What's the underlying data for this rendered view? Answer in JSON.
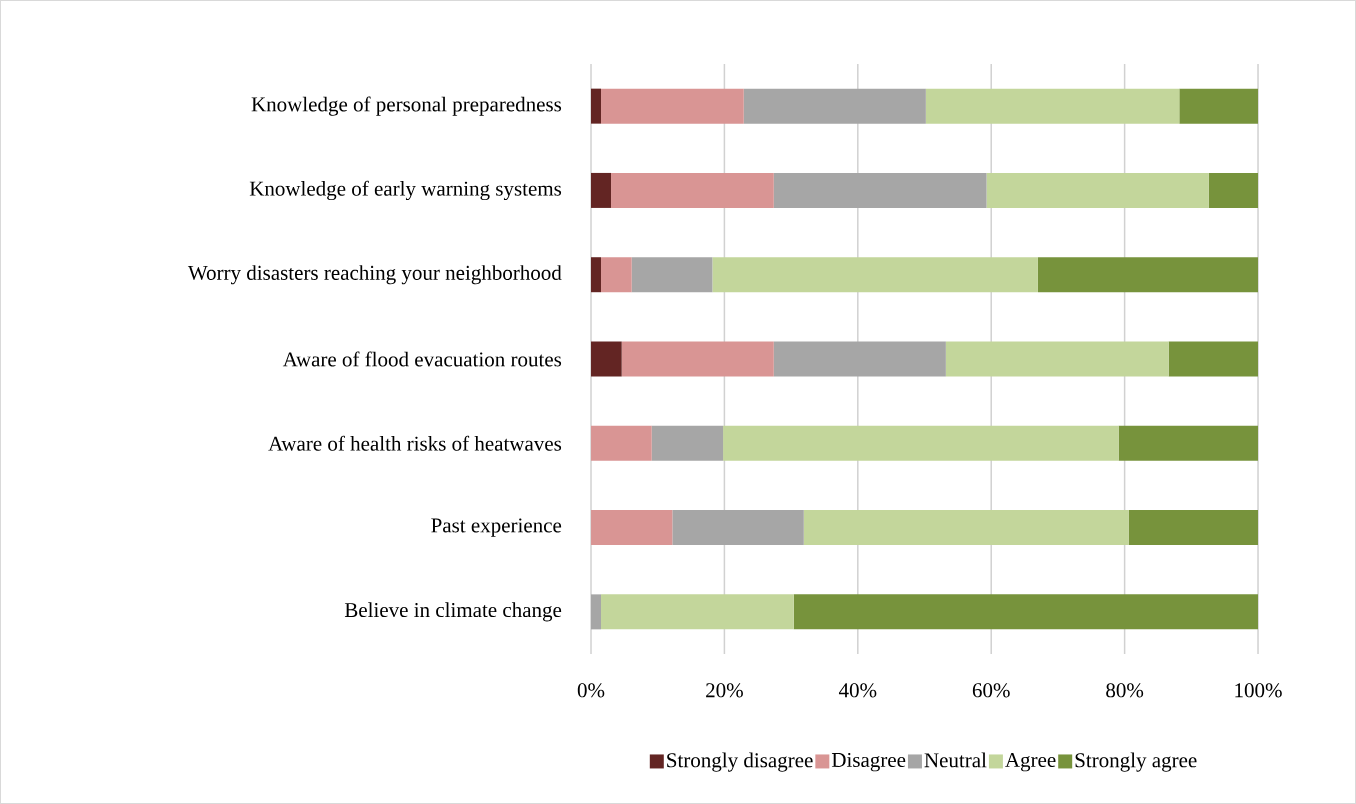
{
  "chart_data": {
    "type": "bar",
    "orientation": "horizontal",
    "stacked": true,
    "categories": [
      "Knowledge of personal preparedness",
      "Knowledge of early warning systems",
      "Worry disasters reaching your neighborhood",
      "Aware of flood evacuation routes",
      "Aware of health risks of heatwaves",
      "Past experience",
      "Believe in climate change"
    ],
    "series": [
      {
        "name": "Strongly disagree",
        "color": "#632523",
        "values": [
          1.5,
          3.0,
          1.5,
          4.6,
          0,
          0,
          0
        ]
      },
      {
        "name": "Disagree",
        "color": "#d99594",
        "values": [
          21.4,
          24.4,
          4.6,
          22.8,
          9.1,
          12.2,
          0
        ]
      },
      {
        "name": "Neutral",
        "color": "#a6a6a6",
        "values": [
          27.3,
          31.9,
          12.1,
          25.8,
          10.7,
          19.7,
          1.5
        ]
      },
      {
        "name": "Agree",
        "color": "#c3d69b",
        "values": [
          38.0,
          33.3,
          48.8,
          33.4,
          59.3,
          48.7,
          28.9
        ]
      },
      {
        "name": "Strongly agree",
        "color": "#77933c",
        "values": [
          11.8,
          7.4,
          33.0,
          13.4,
          20.9,
          19.4,
          69.6
        ]
      }
    ],
    "xlim": [
      0,
      100
    ],
    "xticks": [
      {
        "value": 0,
        "label": "0%"
      },
      {
        "value": 20,
        "label": "20%"
      },
      {
        "value": 40,
        "label": "40%"
      },
      {
        "value": 60,
        "label": "60%"
      },
      {
        "value": 80,
        "label": "80%"
      },
      {
        "value": 100,
        "label": "100%"
      }
    ],
    "grid": "x",
    "legend": "bottom"
  }
}
